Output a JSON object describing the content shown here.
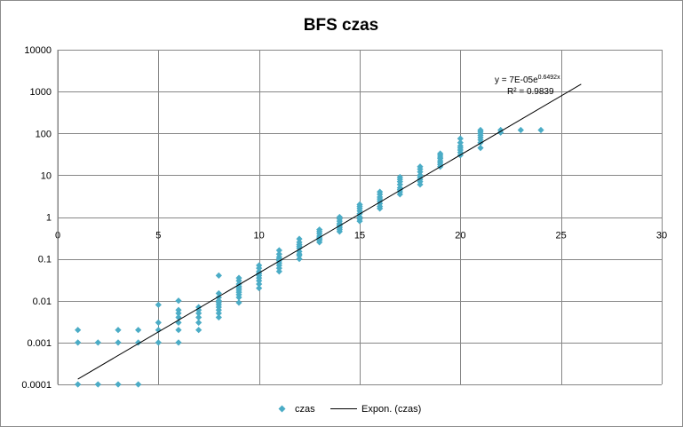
{
  "chart_data": {
    "type": "scatter",
    "title": "BFS czas",
    "xlabel": "",
    "ylabel": "",
    "xlim": [
      0,
      30
    ],
    "ylim": [
      0.0001,
      10000
    ],
    "yscale": "log",
    "grid": true,
    "legend_placement": "bottom",
    "x_ticks": [
      "0",
      "5",
      "10",
      "15",
      "20",
      "25",
      "30"
    ],
    "y_ticks": [
      "0.0001",
      "0.001",
      "0.01",
      "0.1",
      "1",
      "10",
      "100",
      "1000",
      "10000"
    ],
    "series": [
      {
        "name": "czas",
        "color": "#4bacc6",
        "marker": "diamond",
        "points": [
          [
            1,
            0.002
          ],
          [
            1,
            0.001
          ],
          [
            1,
            0.0001
          ],
          [
            2,
            0.001
          ],
          [
            2,
            0.0001
          ],
          [
            3,
            0.002
          ],
          [
            3,
            0.001
          ],
          [
            3,
            0.0001
          ],
          [
            4,
            0.002
          ],
          [
            4,
            0.001
          ],
          [
            4,
            0.0001
          ],
          [
            5,
            0.008
          ],
          [
            5,
            0.003
          ],
          [
            5,
            0.002
          ],
          [
            5,
            0.001
          ],
          [
            6,
            0.01
          ],
          [
            6,
            0.006
          ],
          [
            6,
            0.005
          ],
          [
            6,
            0.004
          ],
          [
            6,
            0.003
          ],
          [
            6,
            0.002
          ],
          [
            6,
            0.001
          ],
          [
            7,
            0.007
          ],
          [
            7,
            0.006
          ],
          [
            7,
            0.005
          ],
          [
            7,
            0.004
          ],
          [
            7,
            0.003
          ],
          [
            7,
            0.002
          ],
          [
            8,
            0.04
          ],
          [
            8,
            0.015
          ],
          [
            8,
            0.012
          ],
          [
            8,
            0.01
          ],
          [
            8,
            0.009
          ],
          [
            8,
            0.008
          ],
          [
            8,
            0.007
          ],
          [
            8,
            0.006
          ],
          [
            8,
            0.005
          ],
          [
            8,
            0.004
          ],
          [
            9,
            0.035
          ],
          [
            9,
            0.03
          ],
          [
            9,
            0.025
          ],
          [
            9,
            0.022
          ],
          [
            9,
            0.02
          ],
          [
            9,
            0.018
          ],
          [
            9,
            0.016
          ],
          [
            9,
            0.014
          ],
          [
            9,
            0.012
          ],
          [
            9,
            0.009
          ],
          [
            10,
            0.07
          ],
          [
            10,
            0.06
          ],
          [
            10,
            0.05
          ],
          [
            10,
            0.045
          ],
          [
            10,
            0.04
          ],
          [
            10,
            0.035
          ],
          [
            10,
            0.03
          ],
          [
            10,
            0.025
          ],
          [
            10,
            0.02
          ],
          [
            11,
            0.16
          ],
          [
            11,
            0.13
          ],
          [
            11,
            0.11
          ],
          [
            11,
            0.1
          ],
          [
            11,
            0.09
          ],
          [
            11,
            0.08
          ],
          [
            11,
            0.07
          ],
          [
            11,
            0.06
          ],
          [
            11,
            0.05
          ],
          [
            12,
            0.3
          ],
          [
            12,
            0.25
          ],
          [
            12,
            0.22
          ],
          [
            12,
            0.2
          ],
          [
            12,
            0.18
          ],
          [
            12,
            0.15
          ],
          [
            12,
            0.13
          ],
          [
            12,
            0.12
          ],
          [
            12,
            0.1
          ],
          [
            13,
            0.5
          ],
          [
            13,
            0.45
          ],
          [
            13,
            0.4
          ],
          [
            13,
            0.35
          ],
          [
            13,
            0.32
          ],
          [
            13,
            0.3
          ],
          [
            13,
            0.28
          ],
          [
            13,
            0.25
          ],
          [
            14,
            1.0
          ],
          [
            14,
            0.9
          ],
          [
            14,
            0.8
          ],
          [
            14,
            0.7
          ],
          [
            14,
            0.65
          ],
          [
            14,
            0.6
          ],
          [
            14,
            0.55
          ],
          [
            14,
            0.5
          ],
          [
            14,
            0.45
          ],
          [
            15,
            2.0
          ],
          [
            15,
            1.8
          ],
          [
            15,
            1.6
          ],
          [
            15,
            1.4
          ],
          [
            15,
            1.2
          ],
          [
            15,
            1.0
          ],
          [
            15,
            0.9
          ],
          [
            15,
            0.8
          ],
          [
            16,
            4.0
          ],
          [
            16,
            3.5
          ],
          [
            16,
            3.0
          ],
          [
            16,
            2.7
          ],
          [
            16,
            2.4
          ],
          [
            16,
            2.1
          ],
          [
            16,
            1.8
          ],
          [
            16,
            1.6
          ],
          [
            17,
            9.0
          ],
          [
            17,
            8.0
          ],
          [
            17,
            7.0
          ],
          [
            17,
            6.0
          ],
          [
            17,
            5.0
          ],
          [
            17,
            4.5
          ],
          [
            17,
            4.0
          ],
          [
            17,
            3.5
          ],
          [
            18,
            16.0
          ],
          [
            18,
            14.0
          ],
          [
            18,
            12.0
          ],
          [
            18,
            10.0
          ],
          [
            18,
            9.0
          ],
          [
            18,
            8.0
          ],
          [
            18,
            7.0
          ],
          [
            18,
            6.0
          ],
          [
            19,
            33.0
          ],
          [
            19,
            30.0
          ],
          [
            19,
            27.0
          ],
          [
            19,
            25.0
          ],
          [
            19,
            22.0
          ],
          [
            19,
            20.0
          ],
          [
            19,
            18.0
          ],
          [
            19,
            16.0
          ],
          [
            20,
            75.0
          ],
          [
            20,
            60.0
          ],
          [
            20,
            50.0
          ],
          [
            20,
            45.0
          ],
          [
            20,
            40.0
          ],
          [
            20,
            35.0
          ],
          [
            20,
            30.0
          ],
          [
            21,
            120.0
          ],
          [
            21,
            110.0
          ],
          [
            21,
            100.0
          ],
          [
            21,
            90.0
          ],
          [
            21,
            80.0
          ],
          [
            21,
            70.0
          ],
          [
            21,
            60.0
          ],
          [
            21,
            45.0
          ],
          [
            22,
            120.0
          ],
          [
            22,
            105.0
          ],
          [
            23,
            120.0
          ],
          [
            24,
            120.0
          ]
        ]
      },
      {
        "name": "Expon. (czas)",
        "type": "line",
        "color": "#000000",
        "model": "exponential",
        "a": 7e-05,
        "b": 0.6492,
        "x_range": [
          1,
          26
        ]
      }
    ],
    "trendline_label": {
      "prefix": "y = 7E-05e",
      "exponent": "0.6492x",
      "r2": "R² = 0.9839"
    }
  }
}
